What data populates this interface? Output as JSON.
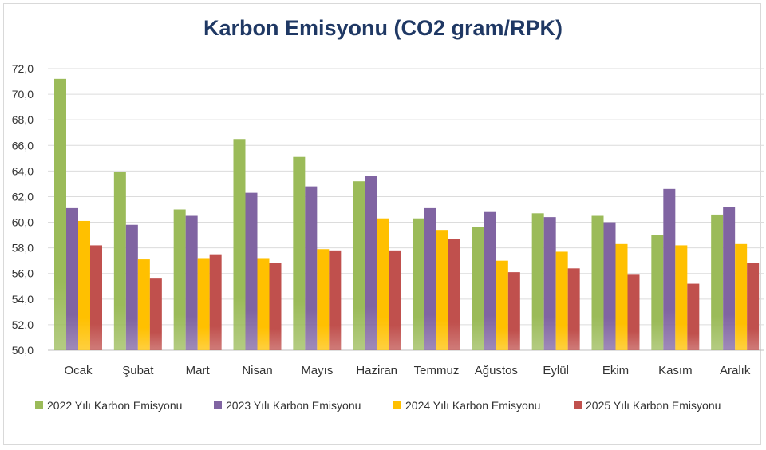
{
  "chart_data": {
    "type": "bar",
    "title": "Karbon Emisyonu (CO2 gram/RPK)",
    "xlabel": "",
    "ylabel": "",
    "ylim": [
      50,
      72
    ],
    "ytick_step": 2,
    "ytick_labels": [
      "50,0",
      "52,0",
      "54,0",
      "56,0",
      "58,0",
      "60,0",
      "62,0",
      "64,0",
      "66,0",
      "68,0",
      "70,0",
      "72,0"
    ],
    "grid": true,
    "legend_position": "bottom",
    "categories": [
      "Ocak",
      "Şubat",
      "Mart",
      "Nisan",
      "Mayıs",
      "Haziran",
      "Temmuz",
      "Ağustos",
      "Eylül",
      "Ekim",
      "Kasım",
      "Aralık"
    ],
    "series": [
      {
        "name": "2022 Yılı Karbon Emisyonu",
        "color": "#9bbb59",
        "values": [
          71.2,
          63.9,
          61.0,
          66.5,
          65.1,
          63.2,
          60.3,
          59.6,
          60.7,
          60.5,
          59.0,
          60.6
        ]
      },
      {
        "name": "2023 Yılı Karbon Emisyonu",
        "color": "#8064a2",
        "values": [
          61.1,
          59.8,
          60.5,
          62.3,
          62.8,
          63.6,
          61.1,
          60.8,
          60.4,
          60.0,
          62.6,
          61.2
        ]
      },
      {
        "name": "2024 Yılı Karbon Emisyonu",
        "color": "#ffc000",
        "values": [
          60.1,
          57.1,
          57.2,
          57.2,
          57.9,
          60.3,
          59.4,
          57.0,
          57.7,
          58.3,
          58.2,
          58.3
        ]
      },
      {
        "name": "2025 Yılı Karbon Emisyonu",
        "color": "#c0504d",
        "values": [
          58.2,
          55.6,
          57.5,
          56.8,
          57.8,
          57.8,
          58.7,
          56.1,
          56.4,
          55.9,
          55.2,
          56.8
        ]
      }
    ]
  }
}
